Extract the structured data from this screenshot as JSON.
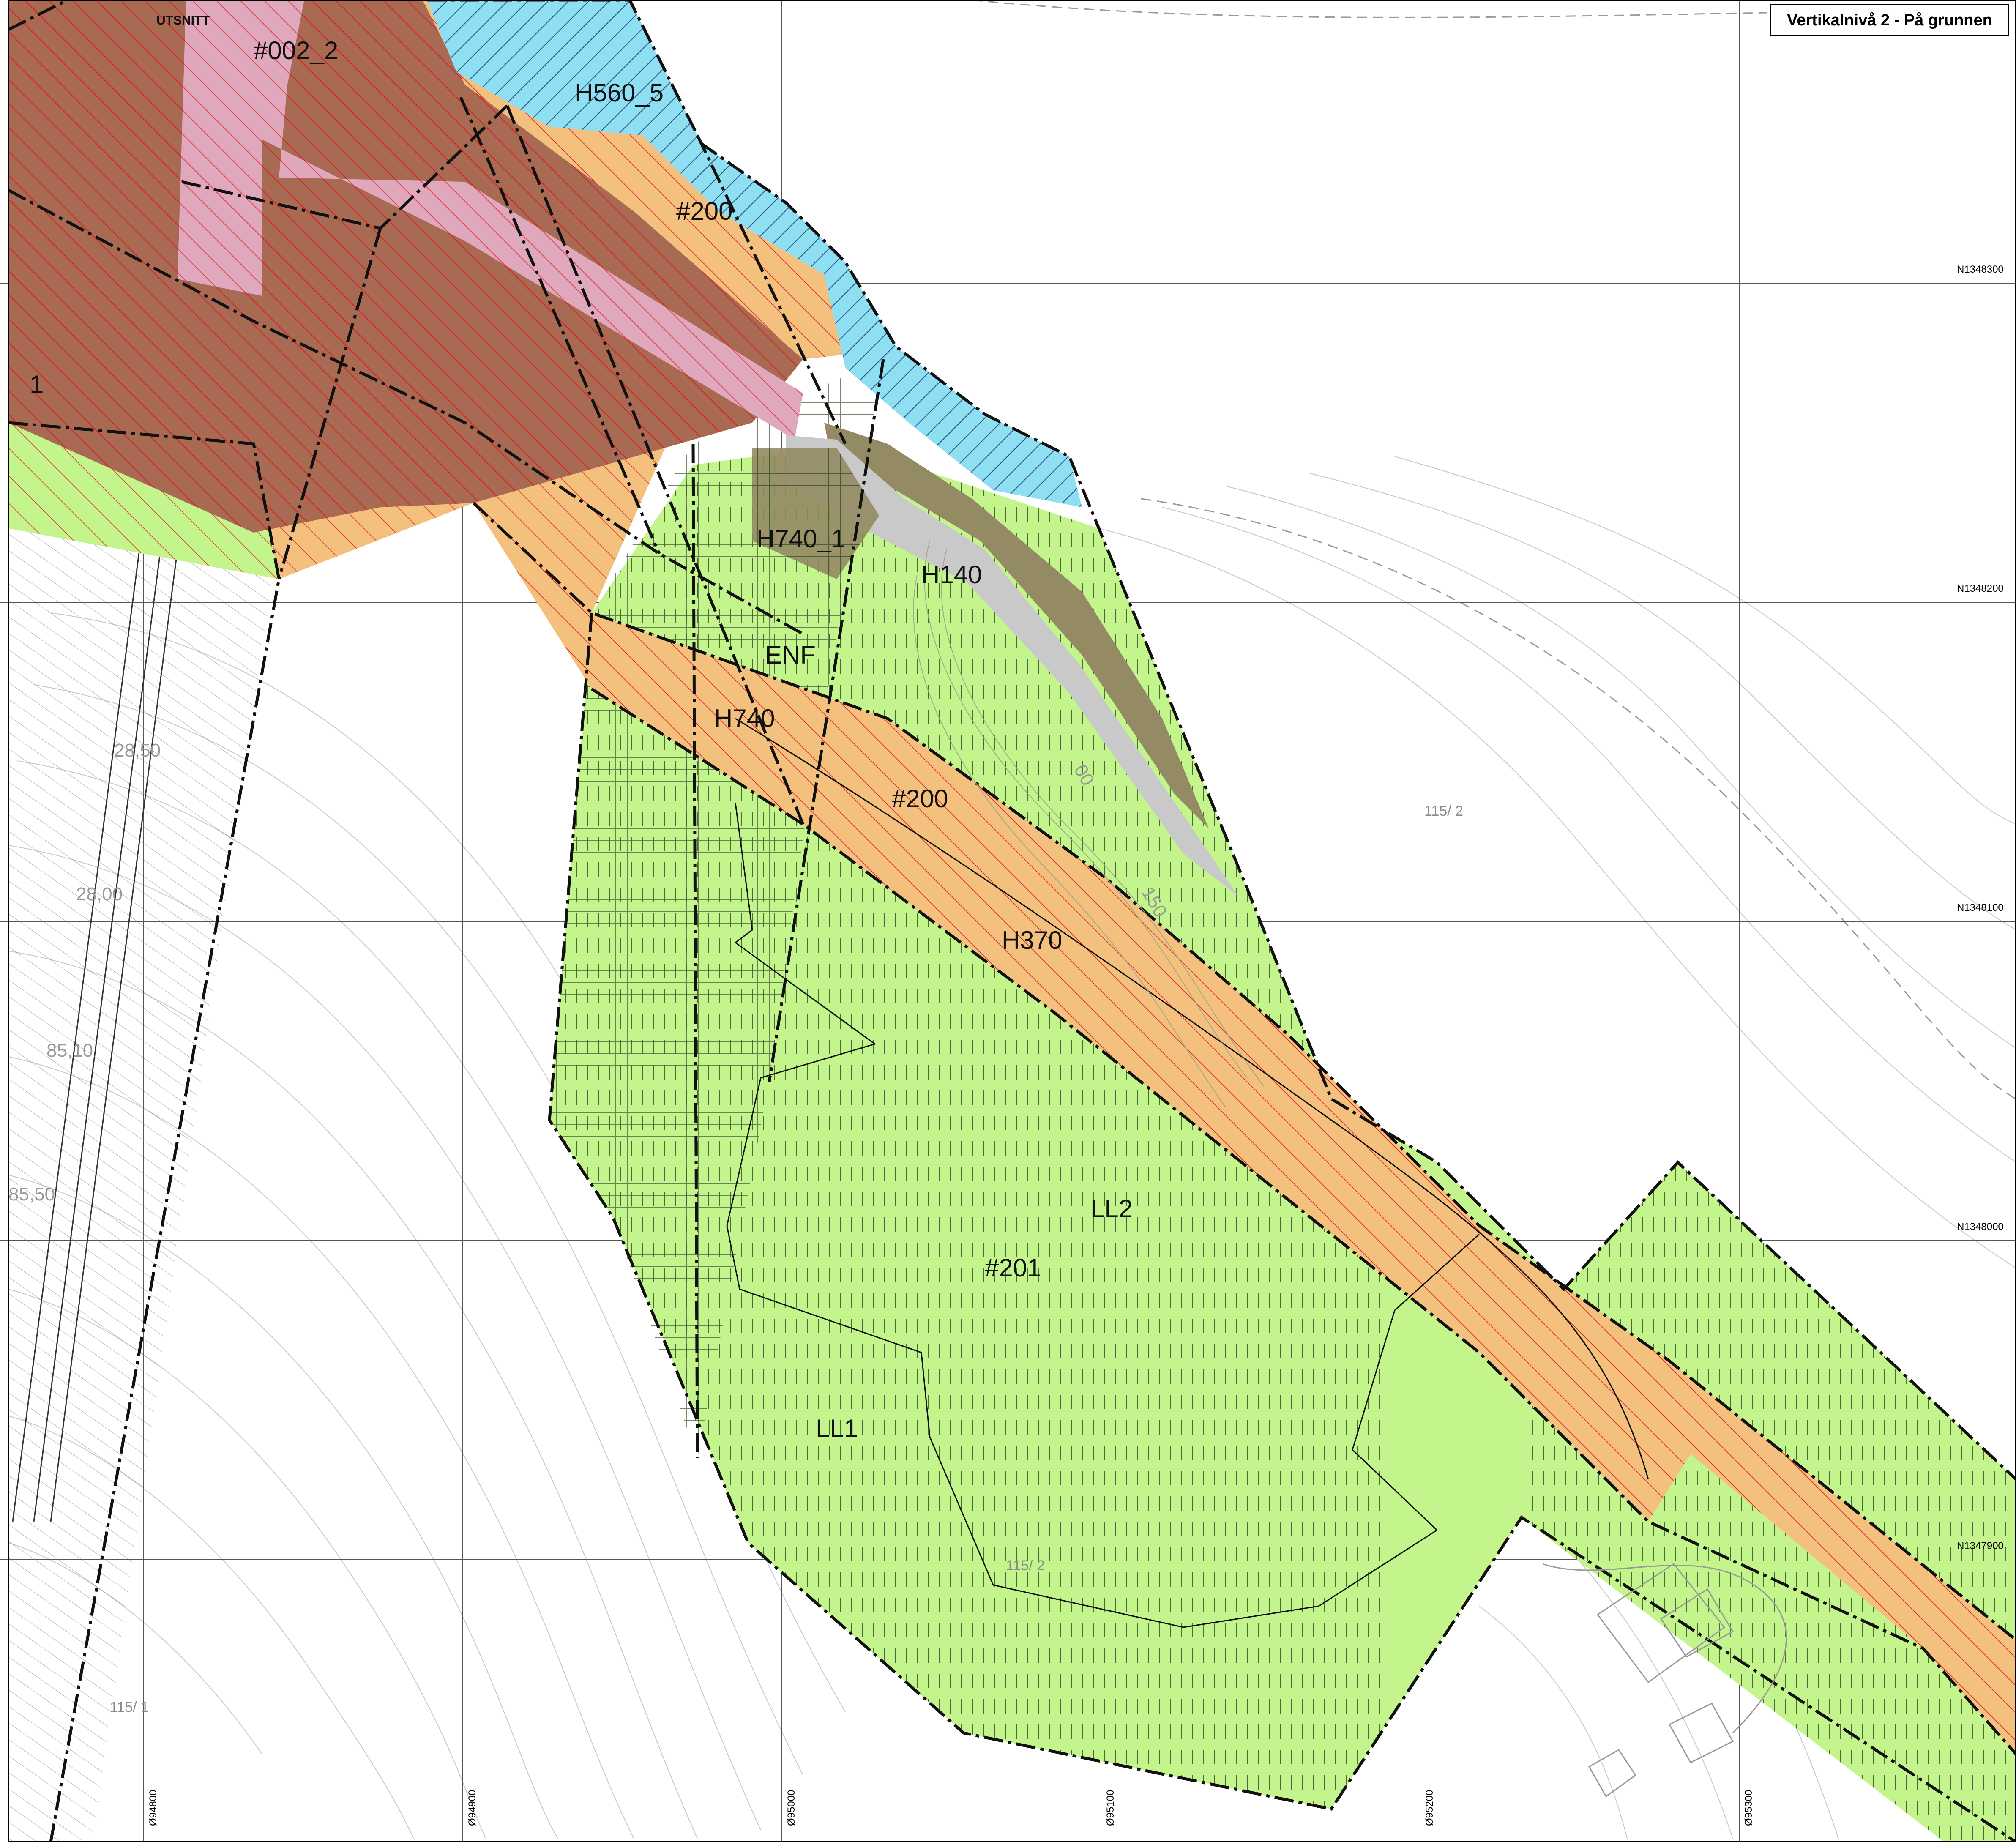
{
  "header": {
    "title": "Vertikalnivå 2 - På grunnen"
  },
  "corner_label": "UTSNITT",
  "zone_labels": {
    "h002_2": "#002_2",
    "h560_5": "H560_5",
    "h200_top": "#200",
    "h740_1": "H740_1",
    "h140": "H140",
    "enf": "ENF",
    "h740": "H740",
    "h200_mid": "#200",
    "h370": "H370",
    "ll2": "LL2",
    "h201": "#201",
    "ll1": "LL1",
    "edge_1": "1"
  },
  "grid": {
    "northing": [
      "N1348300",
      "N1348200",
      "N1348100",
      "N1348000",
      "N1347900"
    ],
    "easting": [
      "Ø94800",
      "Ø94900",
      "Ø95000",
      "Ø95100",
      "Ø95200",
      "Ø95300"
    ]
  },
  "property_labels": {
    "p115_2_a": "115/ 2",
    "p115_2_b": "115/ 2",
    "p115_1": "115/ 1"
  },
  "contour_labels": {
    "c150": "150",
    "c00": "00",
    "c2850": "28,50",
    "c2800": "28,00",
    "c8550": "85,50",
    "c8610": "85,10"
  },
  "colors": {
    "green": "#c4f58c",
    "orange": "#f3c07e",
    "brown": "#a86a52",
    "olive": "#948a63",
    "pink": "#e0a8bd",
    "blue": "#8fdff2",
    "gray": "#c9c9c9",
    "hatch_red": "#e0171e",
    "hatch_gray": "#6e6e6e"
  }
}
